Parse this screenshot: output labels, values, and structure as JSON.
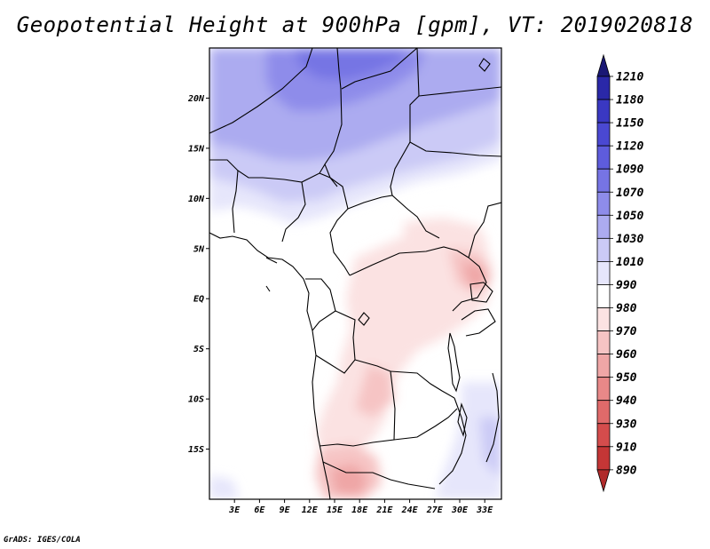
{
  "title": "Geopotential Height at 900hPa [gpm], VT: 2019020818",
  "credit": "GrADS: IGES/COLA",
  "map": {
    "lon_range": [
      0,
      35
    ],
    "lat_range": [
      -20,
      25
    ],
    "lat_ticks": [
      {
        "value": 20,
        "label": "20N"
      },
      {
        "value": 15,
        "label": "15N"
      },
      {
        "value": 10,
        "label": "10N"
      },
      {
        "value": 5,
        "label": "5N"
      },
      {
        "value": 0,
        "label": "EQ"
      },
      {
        "value": -5,
        "label": "5S"
      },
      {
        "value": -10,
        "label": "10S"
      },
      {
        "value": -15,
        "label": "15S"
      }
    ],
    "lon_ticks": [
      {
        "value": 3,
        "label": "3E"
      },
      {
        "value": 6,
        "label": "6E"
      },
      {
        "value": 9,
        "label": "9E"
      },
      {
        "value": 12,
        "label": "12E"
      },
      {
        "value": 15,
        "label": "15E"
      },
      {
        "value": 18,
        "label": "18E"
      },
      {
        "value": 21,
        "label": "21E"
      },
      {
        "value": 24,
        "label": "24E"
      },
      {
        "value": 27,
        "label": "27E"
      },
      {
        "value": 30,
        "label": "30E"
      },
      {
        "value": 33,
        "label": "33E"
      }
    ]
  },
  "colorbar": {
    "levels": [
      {
        "label": "1210",
        "color": "#1c1a86"
      },
      {
        "label": "1180",
        "color": "#2a28a8"
      },
      {
        "label": "1150",
        "color": "#3a38c2"
      },
      {
        "label": "1120",
        "color": "#4a48d2"
      },
      {
        "label": "1090",
        "color": "#5e5cdc"
      },
      {
        "label": "1070",
        "color": "#7674e4"
      },
      {
        "label": "1050",
        "color": "#8e8cea"
      },
      {
        "label": "1030",
        "color": "#acabf0"
      },
      {
        "label": "1010",
        "color": "#cbcaf6"
      },
      {
        "label": "990",
        "color": "#e6e6fb"
      },
      {
        "label": "980",
        "color": "#ffffff"
      },
      {
        "label": "970",
        "color": "#fbe2e2"
      },
      {
        "label": "960",
        "color": "#f6c4c4"
      },
      {
        "label": "950",
        "color": "#efa6a6"
      },
      {
        "label": "940",
        "color": "#e88888"
      },
      {
        "label": "930",
        "color": "#e06a6a"
      },
      {
        "label": "910",
        "color": "#d44c4c"
      },
      {
        "label": "890",
        "color": "#c43636"
      }
    ],
    "top_arrow_color": "#1a1875",
    "bottom_arrow_color": "#b02a2a"
  }
}
